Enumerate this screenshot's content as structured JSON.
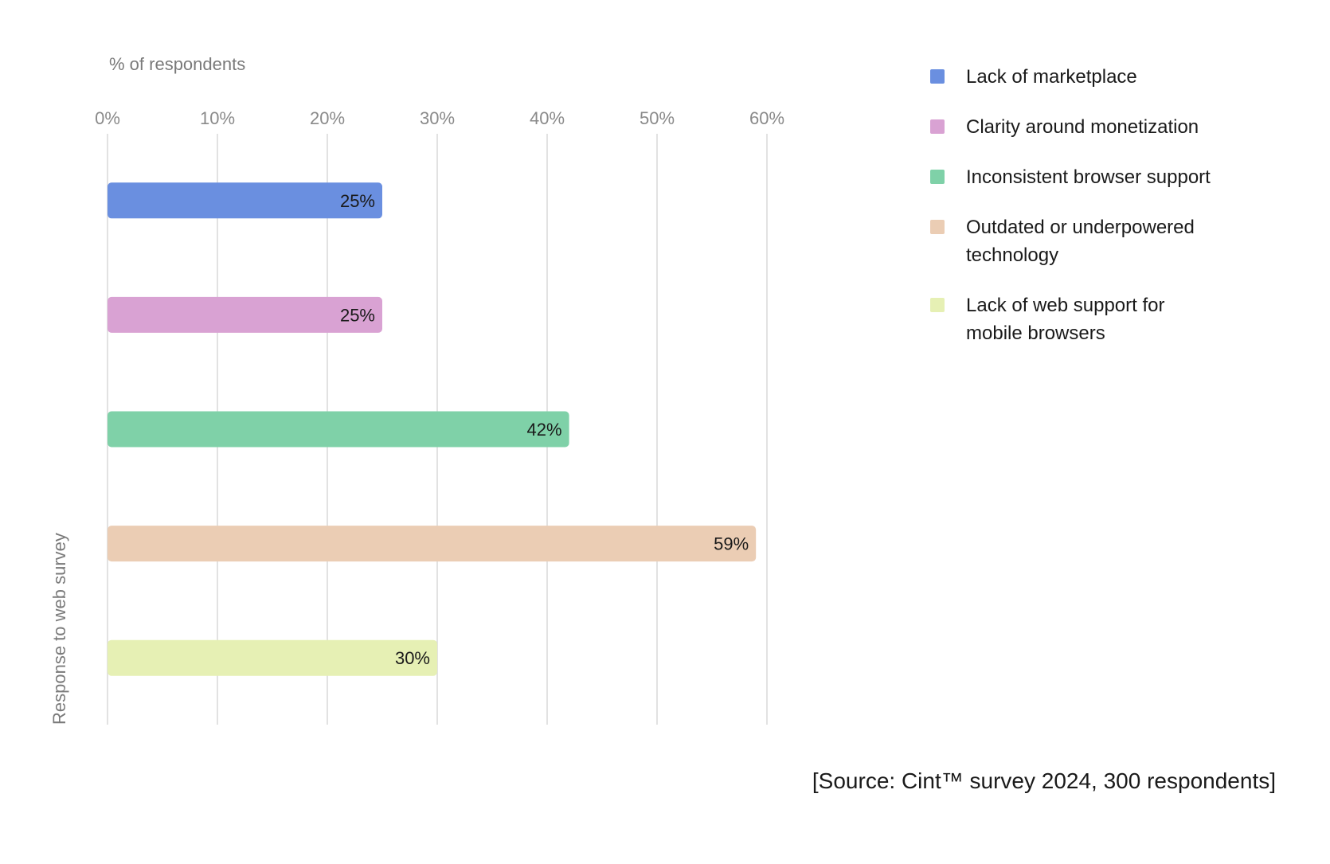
{
  "chart_data": {
    "type": "bar",
    "orientation": "horizontal",
    "xlabel": "% of respondents",
    "ylabel": "Response to web survey",
    "xlim": [
      0,
      60
    ],
    "x_ticks": [
      "0%",
      "10%",
      "20%",
      "30%",
      "40%",
      "50%",
      "60%"
    ],
    "grid": true,
    "legend_position": "right",
    "series": [
      {
        "name": "Lack of marketplace",
        "value": 25,
        "label": "25%",
        "color": "#6a8fe0"
      },
      {
        "name": "Clarity around monetization",
        "value": 25,
        "label": "25%",
        "color": "#d9a2d3"
      },
      {
        "name": "Inconsistent browser support",
        "value": 42,
        "label": "42%",
        "color": "#7fd1a8"
      },
      {
        "name": "Outdated or underpowered technology",
        "value": 59,
        "label": "59%",
        "color": "#ebcdb4"
      },
      {
        "name": "Lack of web support for mobile browsers",
        "value": 30,
        "label": "30%",
        "color": "#e6f0b4"
      }
    ]
  },
  "source_note": "[Source: Cint™ survey 2024, 300 respondents]"
}
